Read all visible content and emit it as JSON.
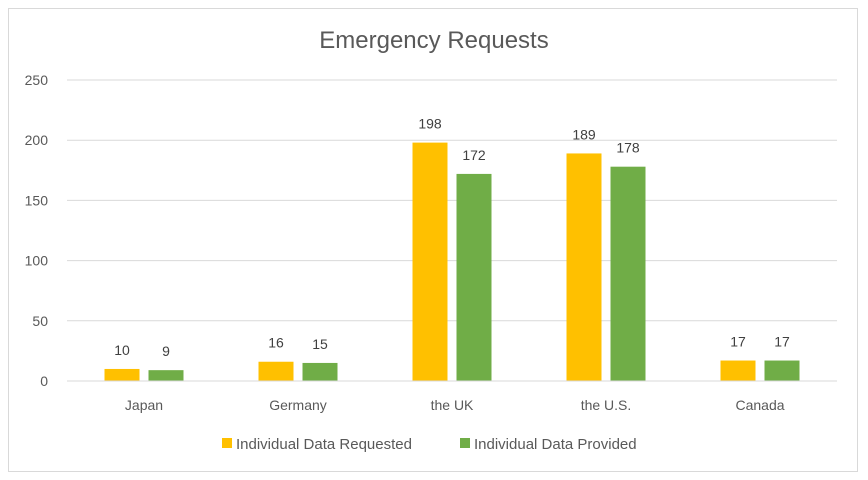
{
  "chart_data": {
    "type": "bar",
    "title": "Emergency Requests",
    "categories": [
      "Japan",
      "Germany",
      "the UK",
      "the U.S.",
      "Canada"
    ],
    "series": [
      {
        "name": "Individual Data Requested",
        "color": "#FFC000",
        "values": [
          10,
          16,
          198,
          189,
          17
        ]
      },
      {
        "name": "Individual Data Provided",
        "color": "#70AD47",
        "values": [
          9,
          15,
          172,
          178,
          17
        ]
      }
    ],
    "ylim": [
      0,
      250
    ],
    "yticks": [
      0,
      50,
      100,
      150,
      200,
      250
    ],
    "grid": true,
    "legend": "bottom",
    "data_labels": true
  }
}
